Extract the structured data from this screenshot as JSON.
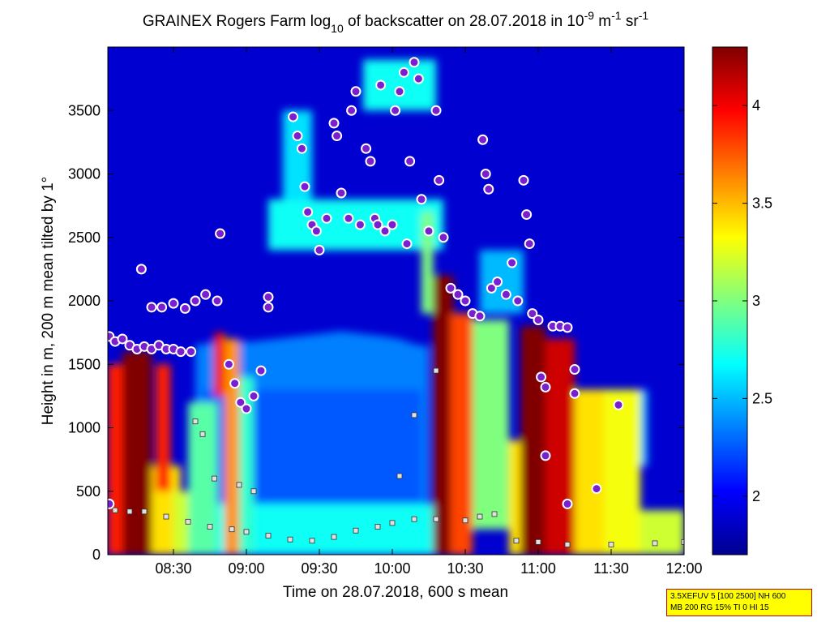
{
  "chart_data": {
    "type": "heatmap",
    "title": {
      "p1": "GRAINEX Rogers Farm log",
      "sub": "10",
      "p2": " of backscatter on 28.07.2018 in 10",
      "e1": "-9",
      "p3": " m",
      "e2": "-1",
      "p4": " sr",
      "e3": "-1"
    },
    "xlabel": "Time on 28.07.2018, 600 s mean",
    "ylabel": "Height in m, 200 m mean tilted by 1°",
    "x_ticks": [
      {
        "t": 8.5,
        "label": "08:30"
      },
      {
        "t": 9.0,
        "label": "09:00"
      },
      {
        "t": 9.5,
        "label": "09:30"
      },
      {
        "t": 10.0,
        "label": "10:00"
      },
      {
        "t": 10.5,
        "label": "10:30"
      },
      {
        "t": 11.0,
        "label": "11:00"
      },
      {
        "t": 11.5,
        "label": "11:30"
      },
      {
        "t": 12.0,
        "label": "12:00"
      }
    ],
    "y_ticks": [
      0,
      500,
      1000,
      1500,
      2000,
      2500,
      3000,
      3500
    ],
    "xlim_hours": [
      8.05,
      12.0
    ],
    "ylim": [
      0,
      4000
    ],
    "colorbar": {
      "ticks": [
        {
          "v": 2,
          "label": "2"
        },
        {
          "v": 2.5,
          "label": "2.5"
        },
        {
          "v": 3,
          "label": "3"
        },
        {
          "v": 3.5,
          "label": "3.5"
        },
        {
          "v": 4,
          "label": "4"
        }
      ],
      "lim": [
        1.7,
        4.3
      ],
      "colormap": "jet"
    },
    "background_value": 2.0,
    "boundary_layer_top": [
      [
        8.65,
        1650
      ],
      [
        8.8,
        1680
      ],
      [
        9.05,
        1680
      ],
      [
        9.2,
        1700
      ],
      [
        9.35,
        1720
      ],
      [
        9.5,
        1740
      ],
      [
        9.65,
        1760
      ],
      [
        9.8,
        1740
      ],
      [
        9.95,
        1720
      ],
      [
        10.05,
        1700
      ],
      [
        10.15,
        1660
      ],
      [
        10.25,
        1640
      ]
    ],
    "residual_layer_top": [
      [
        8.05,
        1650
      ],
      [
        8.2,
        1600
      ],
      [
        8.35,
        1580
      ]
    ],
    "plumes": [
      {
        "x0": 8.05,
        "x1": 8.22,
        "y0": 0,
        "y1": 1500,
        "v": 3.9
      },
      {
        "x0": 8.15,
        "x1": 8.35,
        "y0": 0,
        "y1": 1600,
        "v": 4.3
      },
      {
        "x0": 8.35,
        "x1": 8.55,
        "y0": 0,
        "y1": 700,
        "v": 3.4
      },
      {
        "x0": 8.38,
        "x1": 8.48,
        "y0": 500,
        "y1": 1500,
        "v": 3.9
      },
      {
        "x0": 8.5,
        "x1": 8.68,
        "y0": 0,
        "y1": 500,
        "v": 3.2
      },
      {
        "x0": 8.6,
        "x1": 8.8,
        "y0": 0,
        "y1": 1200,
        "v": 2.9
      },
      {
        "x0": 8.78,
        "x1": 8.85,
        "y0": 1250,
        "y1": 1750,
        "v": 4.0
      },
      {
        "x0": 8.85,
        "x1": 8.95,
        "y0": 0,
        "y1": 1700,
        "v": 3.6
      },
      {
        "x0": 8.95,
        "x1": 9.05,
        "y0": 0,
        "y1": 1400,
        "v": 2.8
      },
      {
        "x0": 10.2,
        "x1": 10.28,
        "y0": 1900,
        "y1": 2700,
        "v": 3.0
      },
      {
        "x0": 10.28,
        "x1": 10.42,
        "y0": 0,
        "y1": 2200,
        "v": 4.3
      },
      {
        "x0": 10.4,
        "x1": 10.55,
        "y0": 0,
        "y1": 1900,
        "v": 3.8
      },
      {
        "x0": 10.55,
        "x1": 10.8,
        "y0": 200,
        "y1": 1850,
        "v": 3.0
      },
      {
        "x0": 10.8,
        "x1": 10.95,
        "y0": 0,
        "y1": 900,
        "v": 3.4
      },
      {
        "x0": 10.88,
        "x1": 11.05,
        "y0": 0,
        "y1": 1800,
        "v": 4.3
      },
      {
        "x0": 11.05,
        "x1": 11.25,
        "y0": 0,
        "y1": 1700,
        "v": 4.1
      },
      {
        "x0": 11.25,
        "x1": 11.45,
        "y0": 0,
        "y1": 1300,
        "v": 3.4
      },
      {
        "x0": 11.45,
        "x1": 11.7,
        "y0": 0,
        "y1": 1300,
        "v": 3.3
      },
      {
        "x0": 11.7,
        "x1": 12.0,
        "y0": 0,
        "y1": 350,
        "v": 3.2
      }
    ],
    "cloud_layers": [
      {
        "x0": 9.15,
        "x1": 10.35,
        "y0": 2400,
        "y1": 2800,
        "v": 2.7
      },
      {
        "x0": 9.25,
        "x1": 9.45,
        "y0": 2800,
        "y1": 3500,
        "v": 2.6
      },
      {
        "x0": 9.8,
        "x1": 10.3,
        "y0": 3500,
        "y1": 3900,
        "v": 2.7
      },
      {
        "x0": 10.6,
        "x1": 10.9,
        "y0": 1900,
        "y1": 2400,
        "v": 2.5
      },
      {
        "x0": 11.55,
        "x1": 11.75,
        "y0": 700,
        "y1": 1300,
        "v": 2.5
      }
    ],
    "cloud_base_markers": [
      [
        8.06,
        1720
      ],
      [
        8.1,
        1680
      ],
      [
        8.15,
        1700
      ],
      [
        8.2,
        1650
      ],
      [
        8.25,
        1620
      ],
      [
        8.3,
        1640
      ],
      [
        8.35,
        1620
      ],
      [
        8.4,
        1650
      ],
      [
        8.45,
        1620
      ],
      [
        8.5,
        1620
      ],
      [
        8.55,
        1600
      ],
      [
        8.62,
        1600
      ],
      [
        8.28,
        2250
      ],
      [
        8.35,
        1950
      ],
      [
        8.42,
        1950
      ],
      [
        8.5,
        1980
      ],
      [
        8.58,
        1940
      ],
      [
        8.65,
        2000
      ],
      [
        8.72,
        2050
      ],
      [
        8.8,
        2000
      ],
      [
        8.82,
        2530
      ],
      [
        8.88,
        1500
      ],
      [
        8.92,
        1350
      ],
      [
        8.96,
        1200
      ],
      [
        9.0,
        1150
      ],
      [
        9.05,
        1250
      ],
      [
        9.1,
        1450
      ],
      [
        9.15,
        1950
      ],
      [
        9.15,
        2030
      ],
      [
        9.32,
        3450
      ],
      [
        9.35,
        3300
      ],
      [
        9.38,
        3200
      ],
      [
        9.4,
        2900
      ],
      [
        9.42,
        2700
      ],
      [
        9.45,
        2600
      ],
      [
        9.48,
        2550
      ],
      [
        9.5,
        2400
      ],
      [
        9.55,
        2650
      ],
      [
        9.6,
        3400
      ],
      [
        9.62,
        3300
      ],
      [
        9.65,
        2850
      ],
      [
        9.7,
        2650
      ],
      [
        9.72,
        3500
      ],
      [
        9.75,
        3650
      ],
      [
        9.78,
        2600
      ],
      [
        9.82,
        3200
      ],
      [
        9.85,
        3100
      ],
      [
        9.88,
        2650
      ],
      [
        9.9,
        2600
      ],
      [
        9.92,
        3700
      ],
      [
        9.95,
        2550
      ],
      [
        10.0,
        2600
      ],
      [
        10.02,
        3500
      ],
      [
        10.05,
        3650
      ],
      [
        10.08,
        3800
      ],
      [
        10.1,
        2450
      ],
      [
        10.12,
        3100
      ],
      [
        10.15,
        3880
      ],
      [
        10.18,
        3750
      ],
      [
        10.2,
        2800
      ],
      [
        10.25,
        2550
      ],
      [
        10.3,
        3500
      ],
      [
        10.32,
        2950
      ],
      [
        10.35,
        2500
      ],
      [
        10.4,
        2100
      ],
      [
        10.45,
        2050
      ],
      [
        10.5,
        2000
      ],
      [
        10.55,
        1900
      ],
      [
        10.6,
        1880
      ],
      [
        10.62,
        3270
      ],
      [
        10.64,
        3000
      ],
      [
        10.66,
        2880
      ],
      [
        10.68,
        2100
      ],
      [
        10.72,
        2150
      ],
      [
        10.78,
        2050
      ],
      [
        10.82,
        2300
      ],
      [
        10.86,
        2000
      ],
      [
        10.9,
        2950
      ],
      [
        10.92,
        2680
      ],
      [
        10.94,
        2450
      ],
      [
        10.96,
        1900
      ],
      [
        11.0,
        1850
      ],
      [
        11.02,
        1400
      ],
      [
        11.05,
        1320
      ],
      [
        11.1,
        1800
      ],
      [
        11.15,
        1800
      ],
      [
        11.2,
        1790
      ],
      [
        11.25,
        1460
      ],
      [
        11.25,
        1270
      ],
      [
        11.05,
        780
      ],
      [
        11.4,
        520
      ],
      [
        11.55,
        1180
      ],
      [
        11.2,
        400
      ],
      [
        8.06,
        400
      ]
    ],
    "layer_markers": [
      [
        8.1,
        350
      ],
      [
        8.2,
        340
      ],
      [
        8.3,
        340
      ],
      [
        8.45,
        300
      ],
      [
        8.6,
        260
      ],
      [
        8.75,
        220
      ],
      [
        8.9,
        200
      ],
      [
        9.0,
        180
      ],
      [
        9.15,
        150
      ],
      [
        9.3,
        120
      ],
      [
        9.45,
        110
      ],
      [
        9.6,
        140
      ],
      [
        9.75,
        190
      ],
      [
        9.9,
        220
      ],
      [
        10.0,
        250
      ],
      [
        10.15,
        280
      ],
      [
        10.3,
        280
      ],
      [
        10.5,
        270
      ],
      [
        10.6,
        300
      ],
      [
        10.7,
        320
      ],
      [
        10.85,
        110
      ],
      [
        11.0,
        100
      ],
      [
        11.2,
        80
      ],
      [
        11.5,
        80
      ],
      [
        11.8,
        90
      ],
      [
        12.0,
        100
      ],
      [
        8.65,
        1050
      ],
      [
        8.7,
        950
      ],
      [
        8.78,
        600
      ],
      [
        8.95,
        550
      ],
      [
        9.05,
        500
      ],
      [
        10.05,
        620
      ],
      [
        10.15,
        1100
      ],
      [
        10.3,
        1450
      ]
    ]
  }
}
